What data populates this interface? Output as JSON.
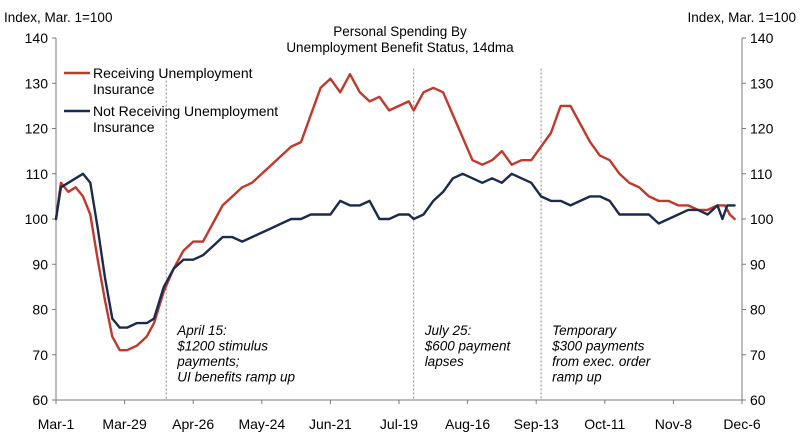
{
  "chart_data": {
    "type": "line",
    "title": "Personal Spending By",
    "subtitle": "Unemployment Benefit Status, 14dma",
    "ylabel_left": "Index, Mar. 1=100",
    "ylabel_right": "Index, Mar. 1=100",
    "ylim": [
      60,
      140
    ],
    "y_ticks": [
      60,
      70,
      80,
      90,
      100,
      110,
      120,
      130,
      140
    ],
    "x_range": [
      "2020-03-01",
      "2020-12-06"
    ],
    "x_ticks": [
      {
        "date": "2020-03-01",
        "label": "Mar-1"
      },
      {
        "date": "2020-03-29",
        "label": "Mar-29"
      },
      {
        "date": "2020-04-26",
        "label": "Apr-26"
      },
      {
        "date": "2020-05-24",
        "label": "May-24"
      },
      {
        "date": "2020-06-21",
        "label": "Jun-21"
      },
      {
        "date": "2020-07-19",
        "label": "Jul-19"
      },
      {
        "date": "2020-08-16",
        "label": "Aug-16"
      },
      {
        "date": "2020-09-13",
        "label": "Sep-13"
      },
      {
        "date": "2020-10-11",
        "label": "Oct-11"
      },
      {
        "date": "2020-11-08",
        "label": "Nov-8"
      },
      {
        "date": "2020-12-06",
        "label": "Dec-6"
      }
    ],
    "grid": false,
    "legend_position": "top-left",
    "series": [
      {
        "name": "Receiving Unemployment Insurance",
        "legend_lines": [
          "Receiving Unemployment",
          "Insurance"
        ],
        "color": "#c0392b",
        "points": [
          [
            "2020-03-01",
            100
          ],
          [
            "2020-03-03",
            108
          ],
          [
            "2020-03-06",
            106
          ],
          [
            "2020-03-09",
            107
          ],
          [
            "2020-03-12",
            105
          ],
          [
            "2020-03-15",
            101
          ],
          [
            "2020-03-18",
            91
          ],
          [
            "2020-03-21",
            82
          ],
          [
            "2020-03-24",
            74
          ],
          [
            "2020-03-27",
            71
          ],
          [
            "2020-03-30",
            71
          ],
          [
            "2020-04-03",
            72
          ],
          [
            "2020-04-07",
            74
          ],
          [
            "2020-04-10",
            77
          ],
          [
            "2020-04-14",
            84
          ],
          [
            "2020-04-18",
            89
          ],
          [
            "2020-04-22",
            93
          ],
          [
            "2020-04-26",
            95
          ],
          [
            "2020-04-30",
            95
          ],
          [
            "2020-05-04",
            99
          ],
          [
            "2020-05-08",
            103
          ],
          [
            "2020-05-12",
            105
          ],
          [
            "2020-05-16",
            107
          ],
          [
            "2020-05-20",
            108
          ],
          [
            "2020-05-24",
            110
          ],
          [
            "2020-05-28",
            112
          ],
          [
            "2020-06-01",
            114
          ],
          [
            "2020-06-05",
            116
          ],
          [
            "2020-06-09",
            117
          ],
          [
            "2020-06-13",
            123
          ],
          [
            "2020-06-17",
            129
          ],
          [
            "2020-06-21",
            131
          ],
          [
            "2020-06-25",
            128
          ],
          [
            "2020-06-29",
            132
          ],
          [
            "2020-07-03",
            128
          ],
          [
            "2020-07-07",
            126
          ],
          [
            "2020-07-11",
            127
          ],
          [
            "2020-07-15",
            124
          ],
          [
            "2020-07-19",
            125
          ],
          [
            "2020-07-23",
            126
          ],
          [
            "2020-07-25",
            124
          ],
          [
            "2020-07-29",
            128
          ],
          [
            "2020-08-02",
            129
          ],
          [
            "2020-08-06",
            128
          ],
          [
            "2020-08-10",
            123
          ],
          [
            "2020-08-14",
            118
          ],
          [
            "2020-08-18",
            113
          ],
          [
            "2020-08-22",
            112
          ],
          [
            "2020-08-26",
            113
          ],
          [
            "2020-08-30",
            115
          ],
          [
            "2020-09-03",
            112
          ],
          [
            "2020-09-07",
            113
          ],
          [
            "2020-09-11",
            113
          ],
          [
            "2020-09-15",
            116
          ],
          [
            "2020-09-19",
            119
          ],
          [
            "2020-09-23",
            125
          ],
          [
            "2020-09-27",
            125
          ],
          [
            "2020-10-01",
            121
          ],
          [
            "2020-10-05",
            117
          ],
          [
            "2020-10-09",
            114
          ],
          [
            "2020-10-13",
            113
          ],
          [
            "2020-10-17",
            110
          ],
          [
            "2020-10-21",
            108
          ],
          [
            "2020-10-25",
            107
          ],
          [
            "2020-10-29",
            105
          ],
          [
            "2020-11-02",
            104
          ],
          [
            "2020-11-06",
            104
          ],
          [
            "2020-11-10",
            103
          ],
          [
            "2020-11-14",
            103
          ],
          [
            "2020-11-18",
            102
          ],
          [
            "2020-11-22",
            102
          ],
          [
            "2020-11-26",
            103
          ],
          [
            "2020-11-29",
            103
          ],
          [
            "2020-12-01",
            101
          ],
          [
            "2020-12-03",
            100
          ]
        ]
      },
      {
        "name": "Not Receiving Unemployment Insurance",
        "legend_lines": [
          "Not Receiving Unemployment",
          "Insurance"
        ],
        "color": "#1b2a4e",
        "points": [
          [
            "2020-03-01",
            100
          ],
          [
            "2020-03-03",
            107
          ],
          [
            "2020-03-06",
            108
          ],
          [
            "2020-03-09",
            109
          ],
          [
            "2020-03-12",
            110
          ],
          [
            "2020-03-15",
            108
          ],
          [
            "2020-03-18",
            98
          ],
          [
            "2020-03-21",
            87
          ],
          [
            "2020-03-24",
            78
          ],
          [
            "2020-03-27",
            76
          ],
          [
            "2020-03-30",
            76
          ],
          [
            "2020-04-03",
            77
          ],
          [
            "2020-04-07",
            77
          ],
          [
            "2020-04-10",
            78
          ],
          [
            "2020-04-14",
            85
          ],
          [
            "2020-04-18",
            89
          ],
          [
            "2020-04-22",
            91
          ],
          [
            "2020-04-26",
            91
          ],
          [
            "2020-04-30",
            92
          ],
          [
            "2020-05-04",
            94
          ],
          [
            "2020-05-08",
            96
          ],
          [
            "2020-05-12",
            96
          ],
          [
            "2020-05-16",
            95
          ],
          [
            "2020-05-20",
            96
          ],
          [
            "2020-05-24",
            97
          ],
          [
            "2020-05-28",
            98
          ],
          [
            "2020-06-01",
            99
          ],
          [
            "2020-06-05",
            100
          ],
          [
            "2020-06-09",
            100
          ],
          [
            "2020-06-13",
            101
          ],
          [
            "2020-06-17",
            101
          ],
          [
            "2020-06-21",
            101
          ],
          [
            "2020-06-25",
            104
          ],
          [
            "2020-06-29",
            103
          ],
          [
            "2020-07-03",
            103
          ],
          [
            "2020-07-07",
            104
          ],
          [
            "2020-07-11",
            100
          ],
          [
            "2020-07-15",
            100
          ],
          [
            "2020-07-19",
            101
          ],
          [
            "2020-07-23",
            101
          ],
          [
            "2020-07-25",
            100
          ],
          [
            "2020-07-29",
            101
          ],
          [
            "2020-08-02",
            104
          ],
          [
            "2020-08-06",
            106
          ],
          [
            "2020-08-10",
            109
          ],
          [
            "2020-08-14",
            110
          ],
          [
            "2020-08-18",
            109
          ],
          [
            "2020-08-22",
            108
          ],
          [
            "2020-08-26",
            109
          ],
          [
            "2020-08-30",
            108
          ],
          [
            "2020-09-03",
            110
          ],
          [
            "2020-09-07",
            109
          ],
          [
            "2020-09-11",
            108
          ],
          [
            "2020-09-15",
            105
          ],
          [
            "2020-09-19",
            104
          ],
          [
            "2020-09-23",
            104
          ],
          [
            "2020-09-27",
            103
          ],
          [
            "2020-10-01",
            104
          ],
          [
            "2020-10-05",
            105
          ],
          [
            "2020-10-09",
            105
          ],
          [
            "2020-10-13",
            104
          ],
          [
            "2020-10-17",
            101
          ],
          [
            "2020-10-21",
            101
          ],
          [
            "2020-10-25",
            101
          ],
          [
            "2020-10-29",
            101
          ],
          [
            "2020-11-02",
            99
          ],
          [
            "2020-11-06",
            100
          ],
          [
            "2020-11-10",
            101
          ],
          [
            "2020-11-14",
            102
          ],
          [
            "2020-11-18",
            102
          ],
          [
            "2020-11-22",
            101
          ],
          [
            "2020-11-26",
            103
          ],
          [
            "2020-11-28",
            100
          ],
          [
            "2020-11-30",
            103
          ],
          [
            "2020-12-03",
            103
          ]
        ]
      }
    ],
    "annotations": [
      {
        "date": "2020-04-15",
        "lines": [
          "April 15:",
          "$1200 stimulus",
          " payments;",
          "UI benefits ramp up"
        ]
      },
      {
        "date": "2020-07-25",
        "lines": [
          "July 25:",
          "$600 payment",
          "lapses"
        ]
      },
      {
        "date": "2020-09-15",
        "lines": [
          "Temporary",
          "$300 payments",
          "from exec. order",
          "ramp up"
        ]
      }
    ]
  }
}
